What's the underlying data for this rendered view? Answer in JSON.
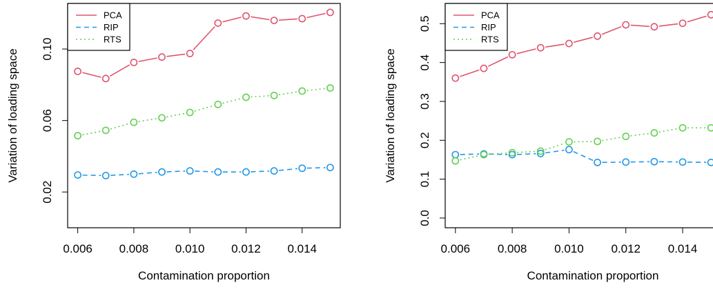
{
  "chart_data": [
    {
      "type": "line",
      "xlabel": "Contamination proportion",
      "ylabel": "Variation of loading space",
      "x": [
        0.006,
        0.007,
        0.008,
        0.009,
        0.01,
        0.011,
        0.012,
        0.013,
        0.014,
        0.015
      ],
      "xticks": [
        "0.006",
        "0.008",
        "0.010",
        "0.012",
        "0.014"
      ],
      "yticks": [
        "0.02",
        "0.06",
        "0.10"
      ],
      "xlim": [
        0.006,
        0.015
      ],
      "ylim": [
        0.0,
        0.122
      ],
      "legend_position": "top-left",
      "grid": false,
      "series": [
        {
          "name": "PCA",
          "color": "#DF536B",
          "dash": "solid",
          "values": [
            0.0875,
            0.0835,
            0.0925,
            0.0955,
            0.0975,
            0.1145,
            0.1185,
            0.116,
            0.117,
            0.1205
          ]
        },
        {
          "name": "RIP",
          "color": "#2297E6",
          "dash": "dashed",
          "values": [
            0.0295,
            0.0292,
            0.03,
            0.0312,
            0.0318,
            0.0312,
            0.0312,
            0.0318,
            0.0333,
            0.0337
          ]
        },
        {
          "name": "RTS",
          "color": "#61D04F",
          "dash": "dotted",
          "values": [
            0.0515,
            0.0545,
            0.059,
            0.0615,
            0.0645,
            0.069,
            0.073,
            0.074,
            0.0765,
            0.0782
          ]
        }
      ]
    },
    {
      "type": "line",
      "xlabel": "Contamination proportion",
      "ylabel": "Variation of loading space",
      "x": [
        0.006,
        0.007,
        0.008,
        0.009,
        0.01,
        0.011,
        0.012,
        0.013,
        0.014,
        0.015
      ],
      "xticks": [
        "0.006",
        "0.008",
        "0.010",
        "0.012",
        "0.014"
      ],
      "yticks": [
        "0.0",
        "0.1",
        "0.2",
        "0.3",
        "0.4",
        "0.5"
      ],
      "xlim": [
        0.006,
        0.015
      ],
      "ylim": [
        0.0,
        0.55
      ],
      "legend_position": "top-left",
      "grid": false,
      "series": [
        {
          "name": "PCA",
          "color": "#DF536B",
          "dash": "solid",
          "values": [
            0.36,
            0.385,
            0.42,
            0.438,
            0.449,
            0.468,
            0.497,
            0.492,
            0.501,
            0.523
          ]
        },
        {
          "name": "RIP",
          "color": "#2297E6",
          "dash": "dashed",
          "values": [
            0.163,
            0.165,
            0.163,
            0.166,
            0.176,
            0.143,
            0.144,
            0.145,
            0.144,
            0.143
          ]
        },
        {
          "name": "RTS",
          "color": "#61D04F",
          "dash": "dotted",
          "values": [
            0.147,
            0.163,
            0.168,
            0.172,
            0.196,
            0.197,
            0.21,
            0.219,
            0.232,
            0.232
          ]
        }
      ]
    }
  ]
}
